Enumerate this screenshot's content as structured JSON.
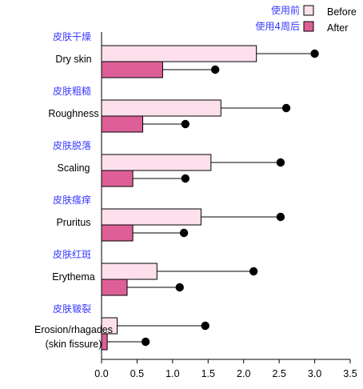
{
  "chart_data": {
    "type": "bar",
    "orientation": "horizontal",
    "categories": [
      {
        "label_cn": "皮肤干燥",
        "label_en": [
          "Dry skin"
        ]
      },
      {
        "label_cn": "皮肤粗糙",
        "label_en": [
          "Roughness"
        ]
      },
      {
        "label_cn": "皮肤脱落",
        "label_en": [
          "Scaling"
        ]
      },
      {
        "label_cn": "皮肤瘙痒",
        "label_en": [
          "Pruritus"
        ]
      },
      {
        "label_cn": "皮肤红斑",
        "label_en": [
          "Erythema"
        ]
      },
      {
        "label_cn": "皮肤皲裂",
        "label_en": [
          "Erosion/rhagades",
          "(skin fissure)"
        ]
      }
    ],
    "series": [
      {
        "name": "Before",
        "name_cn": "使用前",
        "color": "#fde0ec",
        "values": [
          2.18,
          1.68,
          1.54,
          1.4,
          0.78,
          0.22
        ],
        "error_upper": [
          3.0,
          2.6,
          2.52,
          2.52,
          2.14,
          1.46
        ]
      },
      {
        "name": "After",
        "name_cn": "使用4周后",
        "color": "#de5f97",
        "values": [
          0.86,
          0.58,
          0.44,
          0.44,
          0.36,
          0.08
        ],
        "error_upper": [
          1.6,
          1.18,
          1.18,
          1.16,
          1.1,
          0.62
        ]
      }
    ],
    "xlim": [
      0,
      3.5
    ],
    "xticks": [
      "0.0",
      "0.5",
      "1.0",
      "1.5",
      "2.0",
      "2.5",
      "3.0",
      "3.5"
    ],
    "legend_position": "top-right",
    "grid": false,
    "title": "",
    "xlabel": "",
    "ylabel": ""
  }
}
